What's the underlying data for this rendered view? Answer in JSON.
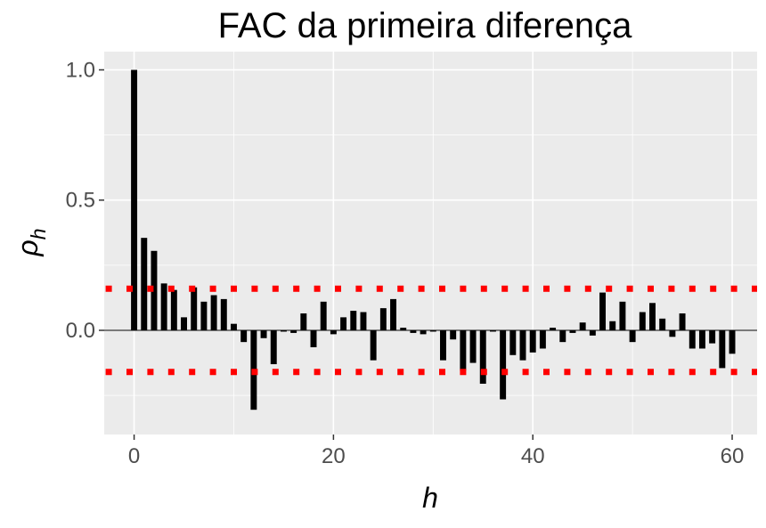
{
  "chart_data": {
    "type": "bar",
    "title": "FAC da primeira diferença",
    "xlabel": "h",
    "ylabel_base": "ρ",
    "ylabel_sub": "h",
    "xlim": [
      -3,
      62.5
    ],
    "ylim": [
      -0.4,
      1.07
    ],
    "x_ticks": [
      0,
      20,
      40,
      60
    ],
    "x_tick_labels": [
      "0",
      "20",
      "40",
      "60"
    ],
    "y_ticks": [
      0.0,
      0.5,
      1.0
    ],
    "y_tick_labels": [
      "0.0",
      "0.5",
      "1.0"
    ],
    "grid": true,
    "bar_color": "#000000",
    "background_color": "#ebebeb",
    "confidence_bound": 0.16,
    "confidence_color": "#ff0000",
    "x": [
      0,
      1,
      2,
      3,
      4,
      5,
      6,
      7,
      8,
      9,
      10,
      11,
      12,
      13,
      14,
      15,
      16,
      17,
      18,
      19,
      20,
      21,
      22,
      23,
      24,
      25,
      26,
      27,
      28,
      29,
      30,
      31,
      32,
      33,
      34,
      35,
      36,
      37,
      38,
      39,
      40,
      41,
      42,
      43,
      44,
      45,
      46,
      47,
      48,
      49,
      50,
      51,
      52,
      53,
      54,
      55,
      56,
      57,
      58,
      59,
      60
    ],
    "values": [
      1.0,
      0.355,
      0.305,
      0.18,
      0.155,
      0.05,
      0.165,
      0.11,
      0.135,
      0.12,
      0.025,
      -0.045,
      -0.305,
      -0.03,
      -0.13,
      -0.005,
      -0.01,
      0.065,
      -0.065,
      0.11,
      -0.015,
      0.05,
      0.075,
      0.07,
      -0.115,
      0.085,
      0.12,
      0.01,
      -0.01,
      -0.015,
      -0.005,
      -0.115,
      -0.035,
      -0.155,
      -0.125,
      -0.205,
      -0.005,
      -0.265,
      -0.095,
      -0.115,
      -0.085,
      -0.07,
      0.01,
      -0.045,
      -0.01,
      0.03,
      -0.02,
      0.145,
      0.035,
      0.11,
      -0.045,
      0.07,
      0.105,
      0.045,
      -0.025,
      0.065,
      -0.07,
      -0.07,
      -0.05,
      -0.145,
      -0.09
    ]
  }
}
